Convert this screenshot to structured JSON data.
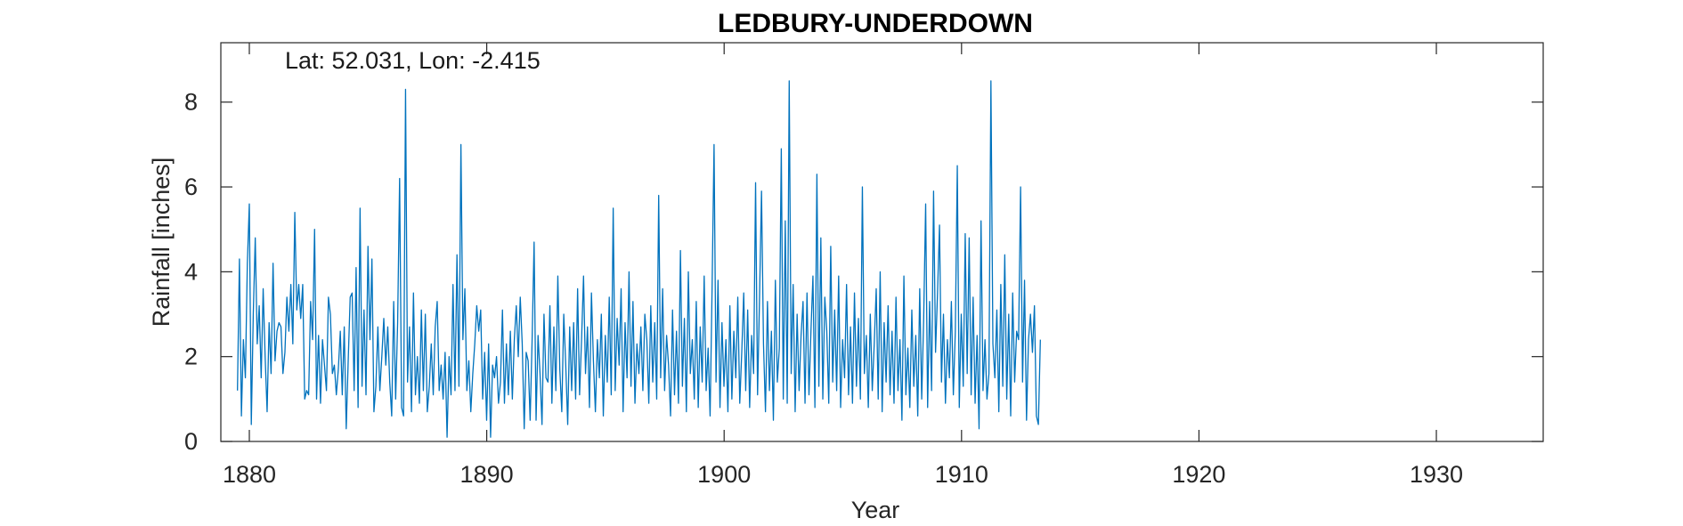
{
  "chart_data": {
    "type": "line",
    "title": "LEDBURY-UNDERDOWN",
    "annotation": "Lat: 52.031, Lon: -2.415",
    "xlabel": "Year",
    "ylabel": "Rainfall [inches]",
    "xlim": [
      1878.8,
      1934.5
    ],
    "ylim": [
      0,
      9.4
    ],
    "xticks": [
      1880,
      1890,
      1900,
      1910,
      1920,
      1930
    ],
    "yticks": [
      0,
      2,
      4,
      6,
      8
    ],
    "grid": false,
    "box": true,
    "series": [
      {
        "color": "#0072BD",
        "start": 1879.5,
        "step": 0.0833,
        "values": [
          1.2,
          4.3,
          0.6,
          2.4,
          1.5,
          4.2,
          5.6,
          0.4,
          3.0,
          4.8,
          2.3,
          3.2,
          1.5,
          3.6,
          2.0,
          0.7,
          2.8,
          1.6,
          4.2,
          1.9,
          2.6,
          2.8,
          2.7,
          1.6,
          2.1,
          3.4,
          2.6,
          3.7,
          2.3,
          5.4,
          3.1,
          3.7,
          2.9,
          3.7,
          1.0,
          1.2,
          1.1,
          3.3,
          2.4,
          5.0,
          1.0,
          2.5,
          0.9,
          2.4,
          1.8,
          1.2,
          3.4,
          3.0,
          1.6,
          1.8,
          1.1,
          1.7,
          2.6,
          1.1,
          2.7,
          0.3,
          1.9,
          3.4,
          3.5,
          1.2,
          4.1,
          0.8,
          5.5,
          1.3,
          3.1,
          1.1,
          4.6,
          2.4,
          4.3,
          0.7,
          1.3,
          2.7,
          1.2,
          2.0,
          2.9,
          1.8,
          2.7,
          1.4,
          0.6,
          3.3,
          1.0,
          2.8,
          6.2,
          0.8,
          0.6,
          8.3,
          1.4,
          2.7,
          0.7,
          3.5,
          1.1,
          2.0,
          0.9,
          3.1,
          1.2,
          3.0,
          0.7,
          1.3,
          2.3,
          1.1,
          2.7,
          3.3,
          1.2,
          1.8,
          1.0,
          2.1,
          0.1,
          2.0,
          1.1,
          3.7,
          1.2,
          4.4,
          1.3,
          7.0,
          2.4,
          3.6,
          1.2,
          1.9,
          0.7,
          1.6,
          2.3,
          3.2,
          2.6,
          3.1,
          1.0,
          2.1,
          0.5,
          2.3,
          0.1,
          1.8,
          1.5,
          2.0,
          0.9,
          1.4,
          3.1,
          0.9,
          2.3,
          1.1,
          2.6,
          1.0,
          2.4,
          3.2,
          2.0,
          3.4,
          2.3,
          0.3,
          2.1,
          1.9,
          0.5,
          2.4,
          4.7,
          0.5,
          2.5,
          1.6,
          0.4,
          3.0,
          1.5,
          1.4,
          3.2,
          0.9,
          2.7,
          1.2,
          3.9,
          1.7,
          0.7,
          3.0,
          1.8,
          0.4,
          2.7,
          1.2,
          2.8,
          1.0,
          3.6,
          1.1,
          2.4,
          3.9,
          1.6,
          2.7,
          0.8,
          3.5,
          1.9,
          0.7,
          2.4,
          1.5,
          3.0,
          0.6,
          2.5,
          1.4,
          3.4,
          1.1,
          5.5,
          1.2,
          2.9,
          1.8,
          3.6,
          0.7,
          2.8,
          1.5,
          4.0,
          1.3,
          3.3,
          0.9,
          2.3,
          1.6,
          2.7,
          1.2,
          3.0,
          2.4,
          0.9,
          3.2,
          1.4,
          2.8,
          1.0,
          5.8,
          1.5,
          3.6,
          1.2,
          2.5,
          1.8,
          0.6,
          3.1,
          1.1,
          2.6,
          0.9,
          4.5,
          1.3,
          2.9,
          0.7,
          4.0,
          1.6,
          2.4,
          1.0,
          3.3,
          0.8,
          2.7,
          1.4,
          3.9,
          1.2,
          2.2,
          0.6,
          3.6,
          7.0,
          1.4,
          3.8,
          0.8,
          2.8,
          1.3,
          2.4,
          0.7,
          3.2,
          1.0,
          2.6,
          1.5,
          3.4,
          0.9,
          2.1,
          3.5,
          1.2,
          3.1,
          0.8,
          2.5,
          1.6,
          6.1,
          1.1,
          3.4,
          5.9,
          2.3,
          0.7,
          3.3,
          1.2,
          2.6,
          0.5,
          3.8,
          1.4,
          2.2,
          6.9,
          1.0,
          5.2,
          0.9,
          8.5,
          1.6,
          3.7,
          0.7,
          3.0,
          1.2,
          2.5,
          3.3,
          0.9,
          3.5,
          1.1,
          2.6,
          3.9,
          0.8,
          6.3,
          1.3,
          4.8,
          1.0,
          3.4,
          2.6,
          0.9,
          4.6,
          1.4,
          3.1,
          1.2,
          3.9,
          0.8,
          2.4,
          1.5,
          3.7,
          1.1,
          2.7,
          0.9,
          3.5,
          1.3,
          2.9,
          1.0,
          6.0,
          1.6,
          2.5,
          0.8,
          3.0,
          1.2,
          2.3,
          3.6,
          1.0,
          4.0,
          0.7,
          2.8,
          1.4,
          3.2,
          1.1,
          2.6,
          0.9,
          3.4,
          1.2,
          2.4,
          0.5,
          3.9,
          1.1,
          2.2,
          0.8,
          3.1,
          1.3,
          2.5,
          0.6,
          3.6,
          1.0,
          2.9,
          5.6,
          0.8,
          3.3,
          1.2,
          5.9,
          2.1,
          3.5,
          5.1,
          1.4,
          3.0,
          0.9,
          2.4,
          1.5,
          3.3,
          1.1,
          2.6,
          6.5,
          0.8,
          3.0,
          1.3,
          4.9,
          1.6,
          4.8,
          1.1,
          3.4,
          0.9,
          2.5,
          0.3,
          5.2,
          1.2,
          2.4,
          1.0,
          1.6,
          8.5,
          2.3,
          1.5,
          3.1,
          0.7,
          3.7,
          1.3,
          4.4,
          1.0,
          3.0,
          0.6,
          3.5,
          1.4,
          2.6,
          2.4,
          6.0,
          1.4,
          3.8,
          0.5,
          2.4,
          3.0,
          2.1,
          3.2,
          0.6,
          0.4,
          2.4
        ]
      }
    ]
  }
}
